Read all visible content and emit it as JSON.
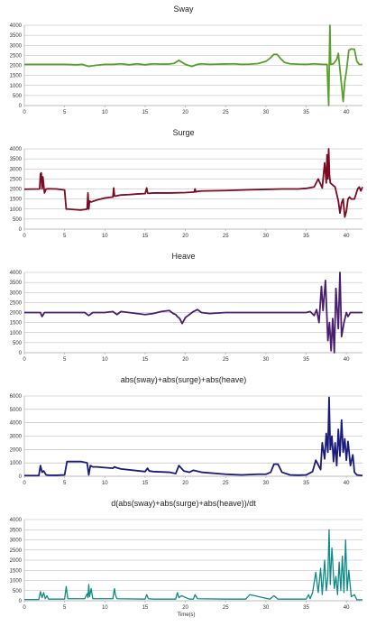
{
  "chart_data": [
    {
      "type": "line",
      "title": "Sway",
      "xlabel": "",
      "ylabel": "",
      "color": "#57a02a",
      "line_width": 1.8,
      "xlim": [
        0,
        42
      ],
      "ylim": [
        0,
        4000
      ],
      "xticks": [
        0,
        5,
        10,
        15,
        20,
        25,
        30,
        35,
        40
      ],
      "yticks": [
        0,
        500,
        1000,
        1500,
        2000,
        2500,
        3000,
        3500,
        4000
      ],
      "series": [
        {
          "x": [
            0,
            3,
            5,
            6.5,
            7.2,
            8,
            8.8,
            10,
            11,
            12,
            13,
            14,
            15,
            16,
            17,
            18,
            18.6,
            19.2,
            20,
            20.8,
            21.5,
            22,
            23,
            24,
            25,
            26,
            27,
            28,
            29,
            30,
            30.5,
            31,
            31.4,
            31.8,
            32.3,
            33,
            34,
            35,
            36,
            37,
            37.6,
            37.8,
            37.95,
            38.05,
            38.2,
            38.4,
            38.8,
            39,
            39.2,
            39.4,
            39.6,
            39.8,
            40,
            40.3,
            40.6,
            41,
            41.3,
            41.6,
            42
          ],
          "y": [
            2050,
            2050,
            2050,
            2030,
            2050,
            1950,
            2000,
            2050,
            2050,
            2080,
            2030,
            2080,
            2030,
            2080,
            2060,
            2070,
            2100,
            2250,
            2050,
            1950,
            2050,
            2080,
            2050,
            2060,
            2070,
            2080,
            2050,
            2060,
            2090,
            2200,
            2350,
            2550,
            2550,
            2350,
            2150,
            2080,
            2060,
            2050,
            2080,
            2050,
            2050,
            0,
            4000,
            2050,
            2060,
            2080,
            2300,
            2600,
            1800,
            1000,
            200,
            1200,
            1700,
            2750,
            2820,
            2800,
            2200,
            2050,
            2050
          ]
        }
      ]
    },
    {
      "type": "line",
      "title": "Surge",
      "xlabel": "",
      "ylabel": "",
      "color": "#7b0c23",
      "line_width": 1.8,
      "xlim": [
        0,
        42
      ],
      "ylim": [
        0,
        4000
      ],
      "xticks": [
        0,
        5,
        10,
        15,
        20,
        25,
        30,
        35,
        40
      ],
      "yticks": [
        0,
        500,
        1000,
        1500,
        2000,
        2500,
        3000,
        3500,
        4000
      ],
      "series": [
        {
          "x": [
            0,
            1.9,
            2.0,
            2.1,
            2.2,
            2.3,
            2.5,
            2.7,
            3,
            4,
            5,
            5.2,
            5.4,
            7,
            7.8,
            7.9,
            8.0,
            8.1,
            8.3,
            9,
            10,
            11,
            11.1,
            11.2,
            11.4,
            12,
            13,
            14,
            15,
            15.2,
            15.3,
            15.5,
            16,
            18,
            20,
            21.1,
            21.2,
            21.3,
            21.5,
            22,
            25,
            28,
            30,
            32,
            34,
            35,
            36,
            36.5,
            37,
            37.3,
            37.5,
            37.6,
            37.7,
            37.8,
            37.9,
            38.0,
            38.3,
            38.6,
            39,
            39.2,
            39.4,
            39.6,
            39.8,
            40,
            40.2,
            40.4,
            40.6,
            41,
            41.4,
            41.6,
            41.8,
            42
          ],
          "y": [
            1990,
            2000,
            2750,
            2800,
            2000,
            2600,
            1800,
            2000,
            2010,
            2000,
            1950,
            1000,
            1000,
            950,
            1000,
            1800,
            1000,
            1400,
            1350,
            1450,
            1550,
            1600,
            2050,
            1650,
            1650,
            1700,
            1720,
            1750,
            1770,
            2050,
            1800,
            1780,
            1800,
            1800,
            1820,
            1850,
            2000,
            1850,
            1880,
            1900,
            1920,
            1960,
            1980,
            2000,
            2000,
            2030,
            2100,
            2500,
            2050,
            3300,
            2300,
            3700,
            2500,
            4000,
            2700,
            2300,
            2200,
            2100,
            1400,
            800,
            1300,
            1500,
            600,
            900,
            1500,
            1600,
            1500,
            1500,
            2000,
            2100,
            1900,
            2100
          ]
        }
      ]
    },
    {
      "type": "line",
      "title": "Heave",
      "xlabel": "",
      "ylabel": "",
      "color": "#4a1f6f",
      "line_width": 1.8,
      "xlim": [
        0,
        42
      ],
      "ylim": [
        0,
        4000
      ],
      "xticks": [
        0,
        5,
        10,
        15,
        20,
        25,
        30,
        35,
        40
      ],
      "yticks": [
        0,
        500,
        1000,
        1500,
        2000,
        2500,
        3000,
        3500,
        4000
      ],
      "series": [
        {
          "x": [
            0,
            2,
            2.2,
            2.5,
            5,
            7.5,
            8,
            8.5,
            10,
            11,
            11.5,
            12,
            13,
            14,
            15,
            16,
            17,
            18,
            18.5,
            18.8,
            19,
            19.3,
            19.6,
            20,
            21,
            21.5,
            22,
            23,
            25,
            28,
            30,
            32,
            33,
            34,
            35,
            35.5,
            36,
            36.3,
            36.6,
            36.9,
            37.1,
            37.4,
            37.7,
            37.9,
            38.1,
            38.3,
            38.5,
            38.7,
            39,
            39.2,
            39.4,
            39.7,
            40,
            40.2,
            40.5,
            41,
            42
          ],
          "y": [
            2000,
            2000,
            1800,
            2000,
            2000,
            2000,
            1850,
            2000,
            2000,
            2050,
            1900,
            2050,
            2000,
            1950,
            1900,
            1950,
            2050,
            2100,
            1950,
            1900,
            1800,
            1700,
            1450,
            1750,
            2050,
            2150,
            2000,
            1950,
            2000,
            2000,
            2000,
            2000,
            2000,
            2000,
            2000,
            2050,
            1850,
            2150,
            1500,
            3300,
            2100,
            3600,
            600,
            1500,
            100,
            1700,
            0,
            3200,
            1200,
            4000,
            800,
            1500,
            2000,
            1800,
            2000,
            2000,
            2000
          ]
        }
      ]
    },
    {
      "type": "line",
      "title": "abs(sway)+abs(surge)+abs(heave)",
      "xlabel": "",
      "ylabel": "",
      "color": "#1a1b7a",
      "line_width": 1.8,
      "xlim": [
        0,
        42
      ],
      "ylim": [
        0,
        6000
      ],
      "xticks": [
        0,
        5,
        10,
        15,
        20,
        25,
        30,
        35,
        40
      ],
      "yticks": [
        0,
        1000,
        2000,
        3000,
        4000,
        5000,
        6000
      ],
      "series": [
        {
          "x": [
            0,
            1.8,
            2.0,
            2.2,
            2.4,
            2.7,
            3,
            4,
            5,
            5.3,
            5.5,
            7,
            7.8,
            8.0,
            8.2,
            8.5,
            9,
            11,
            11.2,
            11.4,
            12,
            15,
            15.3,
            15.5,
            16,
            18,
            18.8,
            19.2,
            19.8,
            20.5,
            21,
            22,
            25,
            27,
            29,
            30,
            30.6,
            31,
            31.5,
            32,
            33,
            34,
            35,
            35.8,
            36.2,
            36.8,
            37,
            37.3,
            37.5,
            37.7,
            37.85,
            38,
            38.2,
            38.4,
            38.6,
            38.8,
            39,
            39.2,
            39.4,
            39.6,
            39.8,
            40,
            40.2,
            40.5,
            40.8,
            41,
            41.3,
            42
          ],
          "y": [
            50,
            50,
            800,
            300,
            400,
            100,
            80,
            70,
            100,
            1100,
            1100,
            1100,
            1000,
            100,
            800,
            700,
            700,
            600,
            700,
            650,
            550,
            350,
            600,
            400,
            350,
            300,
            200,
            800,
            400,
            300,
            450,
            300,
            150,
            100,
            150,
            150,
            300,
            900,
            900,
            300,
            100,
            80,
            100,
            350,
            1200,
            500,
            2500,
            1300,
            3200,
            1800,
            5900,
            2000,
            3000,
            1100,
            2500,
            800,
            3500,
            1500,
            4200,
            1800,
            2800,
            1200,
            2600,
            800,
            1600,
            300,
            100,
            50
          ]
        }
      ]
    },
    {
      "type": "line",
      "title": "d(abs(sway)+abs(surge)+abs(heave))/dt",
      "xlabel": "Time(s)",
      "ylabel": "",
      "color": "#0f8a86",
      "line_width": 1.3,
      "xlim": [
        0,
        42
      ],
      "ylim": [
        0,
        4000
      ],
      "xticks": [
        0,
        5,
        10,
        15,
        20,
        25,
        30,
        35,
        40
      ],
      "yticks": [
        0,
        500,
        1000,
        1500,
        2000,
        2500,
        3000,
        3500,
        4000
      ],
      "series": [
        {
          "x": [
            0,
            1.8,
            2.0,
            2.2,
            2.4,
            2.6,
            2.8,
            3,
            5,
            5.2,
            5.4,
            7.5,
            7.8,
            7.9,
            8.0,
            8.1,
            8.3,
            8.5,
            11,
            11.1,
            11.2,
            11.3,
            11.5,
            15,
            15.2,
            15.4,
            16,
            18.8,
            19.0,
            19.2,
            19.5,
            20.5,
            21.0,
            21.2,
            21.5,
            25,
            27.5,
            28,
            30.5,
            31,
            31.5,
            35,
            35.3,
            35.5,
            35.8,
            36.2,
            36.5,
            36.8,
            37.0,
            37.3,
            37.5,
            37.7,
            37.85,
            38.0,
            38.2,
            38.5,
            38.7,
            38.9,
            39.1,
            39.3,
            39.5,
            39.7,
            39.9,
            40.1,
            40.3,
            40.6,
            41,
            41.3,
            42
          ],
          "y": [
            60,
            60,
            450,
            150,
            400,
            100,
            250,
            80,
            80,
            700,
            100,
            100,
            350,
            150,
            800,
            200,
            600,
            100,
            100,
            400,
            600,
            300,
            100,
            80,
            300,
            100,
            80,
            80,
            400,
            150,
            250,
            80,
            80,
            300,
            100,
            80,
            80,
            300,
            80,
            250,
            80,
            80,
            300,
            100,
            400,
            1400,
            400,
            1600,
            300,
            2000,
            500,
            1200,
            3500,
            800,
            2600,
            600,
            1200,
            300,
            1900,
            500,
            2200,
            400,
            3000,
            500,
            1500,
            200,
            300,
            50,
            50
          ]
        }
      ]
    }
  ]
}
